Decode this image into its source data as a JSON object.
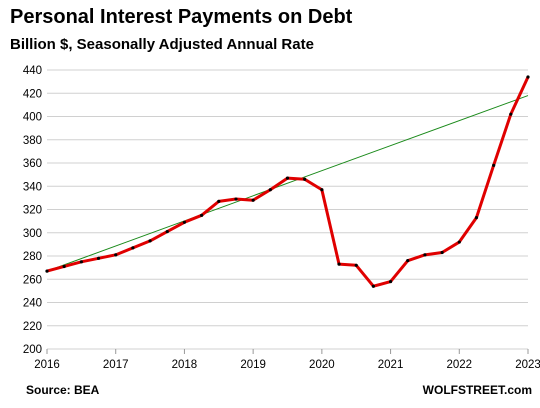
{
  "chart_data": {
    "type": "line",
    "title": "Personal Interest Payments on Debt",
    "subtitle": "Billion $, Seasonally Adjusted Annual Rate",
    "source": "Source: BEA",
    "credit": "WOLFSTREET.com",
    "ylim": [
      200,
      440
    ],
    "xlim": [
      2016,
      2023
    ],
    "yticks": [
      200,
      220,
      240,
      260,
      280,
      300,
      320,
      340,
      360,
      380,
      400,
      420,
      440
    ],
    "xticks": [
      2016,
      2017,
      2018,
      2019,
      2020,
      2021,
      2022,
      2023
    ],
    "grid": "horizontal",
    "series": [
      {
        "color": "#e00000",
        "x": [
          2016.0,
          2016.25,
          2016.5,
          2016.75,
          2017.0,
          2017.25,
          2017.5,
          2017.75,
          2018.0,
          2018.25,
          2018.5,
          2018.75,
          2019.0,
          2019.25,
          2019.5,
          2019.75,
          2020.0,
          2020.25,
          2020.5,
          2020.75,
          2021.0,
          2021.25,
          2021.5,
          2021.75,
          2022.0,
          2022.25,
          2022.5,
          2022.75,
          2023.0
        ],
        "y": [
          267,
          271,
          275,
          278,
          281,
          287,
          293,
          301,
          309,
          315,
          327,
          329,
          328,
          337,
          347,
          346,
          337,
          273,
          272,
          254,
          258,
          276,
          281,
          283,
          292,
          313,
          358,
          402,
          434
        ]
      },
      {
        "color": "#1a8a1a",
        "x": [
          2016.0,
          2019.75,
          2023.0
        ],
        "y": [
          267,
          348,
          418
        ]
      }
    ]
  }
}
